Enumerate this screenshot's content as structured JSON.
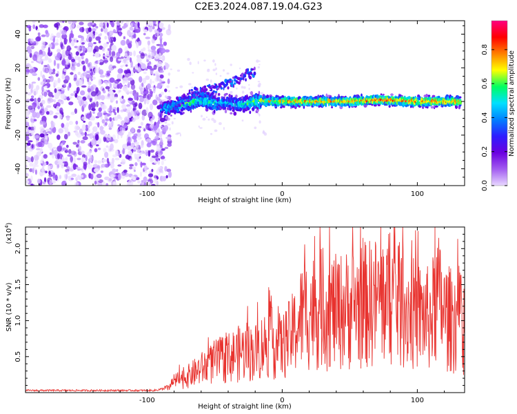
{
  "title": "C2E3.2024.087.19.04.G23",
  "chart_data": [
    {
      "type": "heatmap",
      "name": "spectrogram",
      "xlabel": "Height of straight line (km)",
      "ylabel": "Frequency (Hz)",
      "xlim": [
        -190,
        135
      ],
      "ylim": [
        -50,
        48
      ],
      "xticks": [
        -100,
        0,
        100
      ],
      "yticks": [
        -40,
        -20,
        0,
        20,
        40
      ],
      "grid": false,
      "colorbar": {
        "label": "Normalized spectral amplitude",
        "range": [
          0.0,
          0.97
        ],
        "ticks": [
          0.0,
          0.2,
          0.4,
          0.6,
          0.8
        ],
        "colors": [
          "#e8d8ff",
          "#a25cf0",
          "#6a00e0",
          "#2d1dff",
          "#0080ff",
          "#00e0ff",
          "#00ff60",
          "#ffff00",
          "#ff8000",
          "#ff0000",
          "#ff0080"
        ]
      },
      "regions": [
        {
          "kind": "noise",
          "x_range": [
            -190,
            -88
          ],
          "y_range": [
            -50,
            48
          ]
        },
        {
          "kind": "signal_track",
          "x": [
            -90,
            -80,
            -70,
            -60,
            -50,
            -40,
            -30,
            -20,
            0,
            50,
            70,
            100,
            132
          ],
          "center_hz": [
            -5,
            -3,
            -1,
            1,
            -1,
            -1,
            -2,
            0,
            0,
            0,
            1,
            0,
            0
          ],
          "peak_amplitude": [
            0.4,
            0.5,
            0.55,
            0.55,
            0.5,
            0.45,
            0.5,
            0.6,
            0.75,
            0.8,
            0.85,
            0.85,
            0.8
          ]
        },
        {
          "kind": "branch",
          "x": [
            -80,
            -65,
            -48,
            -30,
            -20
          ],
          "center_hz": [
            -2,
            5,
            8,
            14,
            18
          ]
        }
      ]
    },
    {
      "type": "line",
      "name": "snr",
      "xlabel": "Height of straight line (km)",
      "ylabel": "SNR (10 * v/v)",
      "y_multiplier": "(x10",
      "y_multiplier_exponent": "4",
      "y_multiplier_close": ")",
      "xlim": [
        -190,
        135
      ],
      "ylim": [
        0,
        2.3
      ],
      "xticks": [
        -100,
        0,
        100
      ],
      "yticks": [
        0.5,
        1.0,
        1.5,
        2.0
      ],
      "ytick_labels": [
        "0.5",
        "1.0",
        "1.5",
        "2.0"
      ],
      "color": "#e8322e",
      "envelope": {
        "x": [
          -190,
          -95,
          -85,
          -80,
          -70,
          -60,
          -50,
          -40,
          -30,
          -20,
          -10,
          0,
          10,
          15,
          20,
          30,
          40,
          50,
          60,
          70,
          80,
          90,
          100,
          110,
          115,
          120,
          125,
          130,
          132
        ],
        "y": [
          0.03,
          0.03,
          0.06,
          0.15,
          0.22,
          0.32,
          0.42,
          0.48,
          0.55,
          0.55,
          0.7,
          0.62,
          0.85,
          1.05,
          1.1,
          1.15,
          1.1,
          1.15,
          1.2,
          1.25,
          1.3,
          1.15,
          1.05,
          1.0,
          1.3,
          1.05,
          1.0,
          1.0,
          0.95
        ]
      }
    }
  ]
}
